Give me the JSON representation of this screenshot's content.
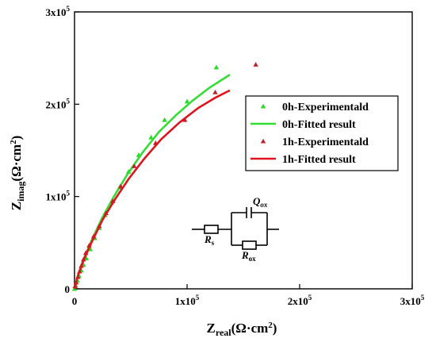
{
  "chart_data": {
    "type": "scatter",
    "xlabel": {
      "main": "Z",
      "sub": "real",
      "unit": "(Ω·cm",
      "sup": "2",
      "close": ")"
    },
    "ylabel": {
      "main": "Z",
      "sub": "imag",
      "unit": "(Ω·cm",
      "sup": "2",
      "close": ")"
    },
    "xlim": [
      0,
      300000
    ],
    "ylim": [
      0,
      300000
    ],
    "x_ticks": [
      {
        "value": 0,
        "mant": "0",
        "exp": ""
      },
      {
        "value": 100000,
        "mant": "1x10",
        "exp": "5"
      },
      {
        "value": 200000,
        "mant": "2x10",
        "exp": "5"
      },
      {
        "value": 300000,
        "mant": "3x10",
        "exp": "5"
      }
    ],
    "y_ticks": [
      {
        "value": 0,
        "mant": "0",
        "exp": ""
      },
      {
        "value": 100000,
        "mant": "1x10",
        "exp": "5"
      },
      {
        "value": 200000,
        "mant": "2x10",
        "exp": "5"
      },
      {
        "value": 300000,
        "mant": "3x10",
        "exp": "5"
      }
    ],
    "grid": false,
    "legend_position": "top-right",
    "series": [
      {
        "name": "0h-Experimentald",
        "kind": "scatter",
        "marker": "triangle",
        "color": "#22dd22",
        "points": [
          [
            0,
            0
          ],
          [
            1000,
            4000
          ],
          [
            2500,
            9000
          ],
          [
            4000,
            14000
          ],
          [
            6000,
            20000
          ],
          [
            8000,
            26000
          ],
          [
            10500,
            33000
          ],
          [
            14000,
            43000
          ],
          [
            18000,
            55000
          ],
          [
            22000,
            66000
          ],
          [
            27000,
            80000
          ],
          [
            33000,
            94000
          ],
          [
            40000,
            110000
          ],
          [
            48000,
            127000
          ],
          [
            57000,
            145000
          ],
          [
            68000,
            164000
          ],
          [
            80000,
            183000
          ],
          [
            100000,
            203000
          ],
          [
            126000,
            240000
          ]
        ]
      },
      {
        "name": "0h-Fitted result",
        "kind": "line",
        "color": "#33dd33",
        "points": [
          [
            0,
            0
          ],
          [
            3000,
            15000
          ],
          [
            8000,
            32000
          ],
          [
            15000,
            52000
          ],
          [
            25000,
            78000
          ],
          [
            35000,
            100000
          ],
          [
            47000,
            124000
          ],
          [
            60000,
            147000
          ],
          [
            75000,
            170000
          ],
          [
            90000,
            188000
          ],
          [
            105000,
            204000
          ],
          [
            120000,
            218000
          ],
          [
            138000,
            232000
          ]
        ]
      },
      {
        "name": "1h-Experimentald",
        "kind": "scatter",
        "marker": "triangle",
        "color": "#c0202a",
        "points": [
          [
            500,
            3000
          ],
          [
            1500,
            7000
          ],
          [
            3000,
            13000
          ],
          [
            4500,
            19000
          ],
          [
            6000,
            25000
          ],
          [
            8000,
            32000
          ],
          [
            10000,
            39000
          ],
          [
            13000,
            47000
          ],
          [
            17000,
            57000
          ],
          [
            22000,
            68000
          ],
          [
            28000,
            82000
          ],
          [
            34000,
            95000
          ],
          [
            41000,
            111000
          ],
          [
            53000,
            133000
          ],
          [
            72000,
            158000
          ],
          [
            98000,
            183000
          ],
          [
            125000,
            213000
          ],
          [
            161000,
            243000
          ]
        ]
      },
      {
        "name": "1h-Fitted result",
        "kind": "line",
        "color": "#e0141e",
        "points": [
          [
            0,
            0
          ],
          [
            3000,
            14000
          ],
          [
            8000,
            31000
          ],
          [
            15000,
            50000
          ],
          [
            25000,
            75000
          ],
          [
            36000,
            97000
          ],
          [
            48000,
            119000
          ],
          [
            62000,
            141000
          ],
          [
            77000,
            162000
          ],
          [
            93000,
            180000
          ],
          [
            110000,
            196000
          ],
          [
            125000,
            207000
          ],
          [
            138000,
            215000
          ]
        ]
      }
    ]
  },
  "circuit": {
    "rs": {
      "main": "R",
      "sub": "s"
    },
    "qox": {
      "main": "Q",
      "sub": "ox"
    },
    "rox": {
      "main": "R",
      "sub": "ox"
    }
  }
}
